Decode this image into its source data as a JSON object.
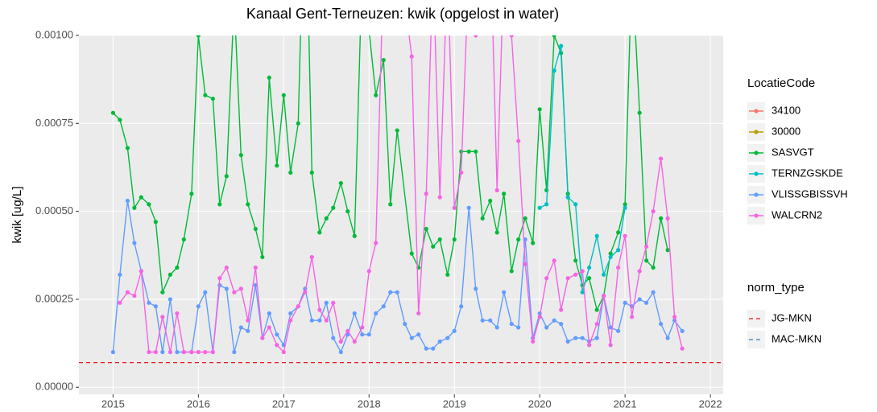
{
  "chart_data": {
    "type": "line",
    "title": "Kanaal Gent-Terneuzen: kwik (opgelost in water)",
    "y_label": "kwik [ug/L]",
    "legend_title": "LocatieCode",
    "norm_legend_title": "norm_type",
    "legend_position": "right",
    "grid": true,
    "xlim": [
      2014.6,
      2022.15
    ],
    "xticks": [
      2015,
      2016,
      2017,
      2018,
      2019,
      2020,
      2021,
      2022
    ],
    "ylim": [
      -2e-05,
      0.001
    ],
    "yticks": [
      {
        "value": 0,
        "label": "0.00000"
      },
      {
        "value": 0.00025,
        "label": "0.00025"
      },
      {
        "value": 0.0005,
        "label": "0.00050"
      },
      {
        "value": 0.00075,
        "label": "0.00075"
      },
      {
        "value": 0.001,
        "label": "0.00100"
      }
    ],
    "series": [
      {
        "name": "34100",
        "color": "#F8766D",
        "x": [],
        "values": []
      },
      {
        "name": "30000",
        "color": "#B79F00",
        "x": [],
        "values": []
      },
      {
        "name": "SASVGT",
        "color": "#00BA38",
        "x": [
          2015,
          2015.08,
          2015.17,
          2015.25,
          2015.33,
          2015.42,
          2015.5,
          2015.58,
          2015.67,
          2015.75,
          2015.83,
          2015.92,
          2016,
          2016.08,
          2016.17,
          2016.25,
          2016.33,
          2016.42,
          2016.5,
          2016.58,
          2016.67,
          2016.75,
          2016.83,
          2016.92,
          2017,
          2017.08,
          2017.17,
          2017.25,
          2017.33,
          2017.42,
          2017.5,
          2017.58,
          2017.67,
          2017.75,
          2017.83,
          2017.92,
          2018.08,
          2018.17,
          2018.25,
          2018.33,
          2018.5,
          2018.58,
          2018.67,
          2018.75,
          2018.83,
          2018.92,
          2019,
          2019.08,
          2019.17,
          2019.25,
          2019.33,
          2019.42,
          2019.5,
          2019.58,
          2019.67,
          2019.75,
          2019.83,
          2019.92,
          2020,
          2020.08,
          2020.17,
          2020.25,
          2020.33,
          2020.42,
          2020.5,
          2020.58,
          2020.67,
          2020.75,
          2020.83,
          2020.92,
          2021,
          2021.08,
          2021.17,
          2021.25,
          2021.33,
          2021.42,
          2021.5
        ],
        "values": [
          0.00078,
          0.00076,
          0.00068,
          0.00051,
          0.00054,
          0.00052,
          0.00047,
          0.00027,
          0.00032,
          0.00034,
          0.00042,
          0.00055,
          0.001,
          0.00083,
          0.00082,
          0.00052,
          0.0006,
          0.0011,
          0.00066,
          0.00052,
          0.00045,
          0.00037,
          0.00088,
          0.00063,
          0.00083,
          0.00061,
          0.00075,
          0.0015,
          0.00061,
          0.00044,
          0.00048,
          0.00051,
          0.00058,
          0.0005,
          0.00043,
          0.0012,
          0.00083,
          0.00093,
          0.00052,
          0.00073,
          0.00038,
          0.00034,
          0.00045,
          0.0004,
          0.00042,
          0.00032,
          0.00042,
          0.00067,
          0.00067,
          0.00067,
          0.00048,
          0.00053,
          0.00044,
          0.00055,
          0.00033,
          0.00042,
          0.00048,
          0.00041,
          0.00079,
          0.00056,
          0.001,
          0.00095,
          0.00055,
          0.00036,
          0.00029,
          0.00031,
          0.00022,
          0.00026,
          0.00038,
          0.00044,
          0.00052,
          0.0012,
          0.00078,
          0.00036,
          0.00034,
          0.00048,
          0.00039
        ]
      },
      {
        "name": "TERNZGSKDE",
        "color": "#00BFC4",
        "x": [
          2020,
          2020.08,
          2020.17,
          2020.25,
          2020.33,
          2020.42,
          2020.5,
          2020.58,
          2020.67,
          2020.75,
          2020.83,
          2020.92,
          2021
        ],
        "values": [
          0.00051,
          0.00052,
          0.0009,
          0.00097,
          0.00054,
          0.00052,
          0.00027,
          0.00034,
          0.00043,
          0.00032,
          0.00037,
          0.00039,
          0.00051
        ]
      },
      {
        "name": "VLISSGBISSVH",
        "color": "#619CFF",
        "x": [
          2015,
          2015.08,
          2015.17,
          2015.25,
          2015.33,
          2015.42,
          2015.5,
          2015.58,
          2015.67,
          2015.75,
          2015.83,
          2015.92,
          2016,
          2016.08,
          2016.17,
          2016.25,
          2016.33,
          2016.42,
          2016.5,
          2016.58,
          2016.67,
          2016.75,
          2016.83,
          2016.92,
          2017,
          2017.08,
          2017.17,
          2017.25,
          2017.33,
          2017.42,
          2017.5,
          2017.58,
          2017.67,
          2017.75,
          2017.83,
          2017.92,
          2018,
          2018.08,
          2018.17,
          2018.25,
          2018.33,
          2018.42,
          2018.5,
          2018.58,
          2018.67,
          2018.75,
          2018.83,
          2018.92,
          2019,
          2019.08,
          2019.17,
          2019.25,
          2019.33,
          2019.42,
          2019.5,
          2019.58,
          2019.67,
          2019.75,
          2019.83,
          2019.92,
          2020,
          2020.08,
          2020.17,
          2020.25,
          2020.33,
          2020.42,
          2020.5,
          2020.58,
          2020.67,
          2020.75,
          2020.83,
          2020.92,
          2021,
          2021.08,
          2021.17,
          2021.25,
          2021.33,
          2021.42,
          2021.5,
          2021.58,
          2021.67
        ],
        "values": [
          0.0001,
          0.00032,
          0.00053,
          0.00041,
          0.00033,
          0.00024,
          0.00023,
          0.0001,
          0.00025,
          0.0001,
          0.0001,
          0.0001,
          0.00023,
          0.00027,
          0.0001,
          0.00029,
          0.00028,
          0.0001,
          0.00017,
          0.00016,
          0.00029,
          0.00014,
          0.00021,
          0.00015,
          0.00012,
          0.00021,
          0.00023,
          0.00028,
          0.00019,
          0.00019,
          0.00024,
          0.00014,
          0.0001,
          0.00015,
          0.00021,
          0.00015,
          0.00015,
          0.00021,
          0.00023,
          0.00027,
          0.00027,
          0.00018,
          0.00014,
          0.00015,
          0.00011,
          0.00011,
          0.00013,
          0.00014,
          0.00016,
          0.00023,
          0.00051,
          0.00028,
          0.00019,
          0.00019,
          0.00017,
          0.00027,
          0.00018,
          0.00017,
          0.00042,
          0.00014,
          0.00021,
          0.00017,
          0.00019,
          0.00018,
          0.00013,
          0.00014,
          0.00014,
          0.00013,
          0.00014,
          0.00026,
          0.00017,
          0.00016,
          0.00024,
          0.00023,
          0.00025,
          0.00024,
          0.00027,
          0.00018,
          0.00014,
          0.00019,
          0.00016
        ]
      },
      {
        "name": "WALCRN2",
        "color": "#F564E3",
        "x": [
          2015.08,
          2015.17,
          2015.25,
          2015.33,
          2015.42,
          2015.5,
          2015.58,
          2015.67,
          2015.75,
          2015.83,
          2015.92,
          2016,
          2016.08,
          2016.17,
          2016.25,
          2016.33,
          2016.42,
          2016.5,
          2016.58,
          2016.67,
          2016.75,
          2016.83,
          2016.92,
          2017,
          2017.08,
          2017.17,
          2017.25,
          2017.33,
          2017.42,
          2017.5,
          2017.58,
          2017.67,
          2017.75,
          2017.83,
          2017.92,
          2018,
          2018.08,
          2018.17,
          2018.25,
          2018.33,
          2018.42,
          2018.5,
          2018.58,
          2018.67,
          2018.75,
          2018.83,
          2018.92,
          2019,
          2019.08,
          2019.17,
          2019.25,
          2019.33,
          2019.42,
          2019.5,
          2019.58,
          2019.67,
          2019.75,
          2019.83,
          2019.92,
          2020,
          2020.08,
          2020.17,
          2020.25,
          2020.33,
          2020.42,
          2020.5,
          2020.58,
          2020.67,
          2020.75,
          2020.83,
          2020.92,
          2021,
          2021.08,
          2021.17,
          2021.25,
          2021.33,
          2021.42,
          2021.5,
          2021.58,
          2021.67
        ],
        "values": [
          0.00024,
          0.00027,
          0.00026,
          0.00033,
          0.0001,
          0.0001,
          0.0002,
          0.0001,
          0.00021,
          0.0001,
          0.0001,
          0.0001,
          0.0001,
          0.0001,
          0.00031,
          0.00034,
          0.00027,
          0.00028,
          0.00019,
          0.00034,
          0.00014,
          0.00017,
          0.00012,
          0.0001,
          0.00019,
          0.00023,
          0.00027,
          0.00037,
          0.00022,
          0.00019,
          0.00024,
          0.00013,
          0.00016,
          0.00013,
          0.00017,
          0.00033,
          0.00041,
          0.0012,
          0.0011,
          0.0012,
          0.0011,
          0.00094,
          0.00021,
          0.00055,
          0.0012,
          0.00054,
          0.0012,
          0.00051,
          0.00061,
          0.0012,
          0.001,
          0.0012,
          0.0013,
          0.00056,
          0.0012,
          0.001,
          0.0007,
          0.00035,
          0.00013,
          0.0002,
          0.00031,
          0.00036,
          0.00022,
          0.00031,
          0.00032,
          0.00033,
          0.00012,
          0.00018,
          0.00026,
          0.00012,
          0.00034,
          0.00043,
          0.0002,
          0.00033,
          0.0004,
          0.0005,
          0.00065,
          0.00048,
          0.0002,
          0.00011
        ]
      }
    ],
    "norm_lines": [
      {
        "name": "JG-MKN",
        "color": "#E41A1C",
        "value": 7e-05
      },
      {
        "name": "MAC-MKN",
        "color": "#377EB8",
        "value": null
      }
    ]
  }
}
